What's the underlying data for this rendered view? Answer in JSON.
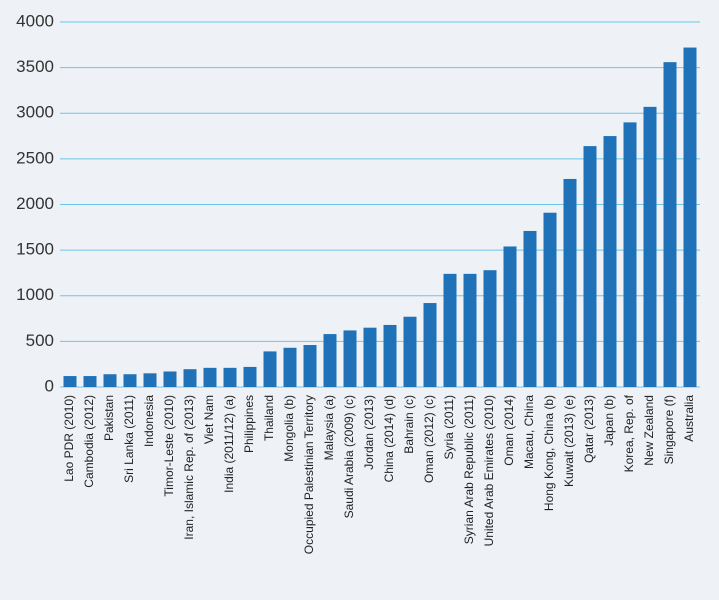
{
  "chart_data": {
    "type": "bar",
    "categories": [
      "Lao PDR (2010)",
      "Cambodia (2012)",
      "Pakistan",
      "Sri Lanka (2011)",
      "Indonesia",
      "Timor-Leste (2010)",
      "Iran, Islamic Rep. of (2013)",
      "Viet Nam",
      "India (2011/12) (a)",
      "Philippines",
      "Thailand",
      "Mongolia (b)",
      "Occupied Palestinian Territory",
      "Malaysia (a)",
      "Saudi Arabia (2009) (c)",
      "Jordan (2013)",
      "China (2014) (d)",
      "Bahrain (c)",
      "Oman (2012) (c)",
      "Syria (2011)",
      "Syrian Arab Republic (2011)",
      "United Arab Emirates (2010)",
      "Oman (2014)",
      "Macau, China",
      "Hong Kong, China (b)",
      "Kuwait (2013) (e)",
      "Qatar (2013)",
      "Japan (b)",
      "Korea, Rep. of",
      "New Zealand",
      "Singapore (f)",
      "Australia"
    ],
    "values": [
      120,
      120,
      140,
      140,
      150,
      170,
      195,
      210,
      210,
      220,
      390,
      430,
      460,
      580,
      620,
      650,
      680,
      770,
      920,
      1240,
      1240,
      1280,
      1540,
      1710,
      1910,
      2280,
      2640,
      2750,
      2900,
      3070,
      3560,
      3720
    ],
    "color": "#1f72b8",
    "ylim": [
      0,
      4000
    ],
    "yticks": [
      0,
      500,
      1000,
      1500,
      2000,
      2500,
      3000,
      3500,
      4000
    ],
    "grid": true
  }
}
